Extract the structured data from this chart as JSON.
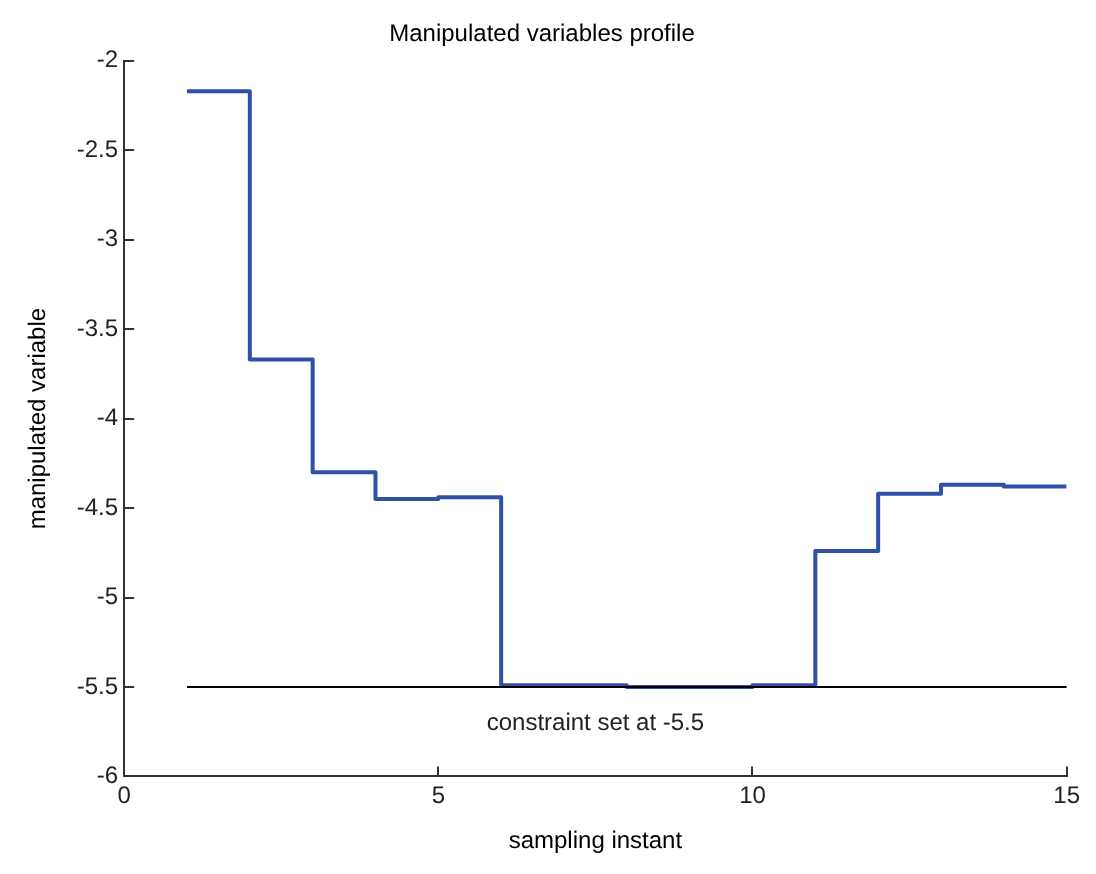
{
  "chart_data": {
    "type": "step",
    "title": "Manipulated variables profile",
    "xlabel": "sampling instant",
    "ylabel": "manipulated variable",
    "x": [
      1,
      2,
      3,
      4,
      5,
      6,
      7,
      8,
      9,
      10,
      11,
      12,
      13,
      14,
      15
    ],
    "series": [
      {
        "color": "#3050a8",
        "values": [
          -2.17,
          -3.67,
          -4.3,
          -4.45,
          -4.44,
          -5.49,
          -5.49,
          -5.5,
          -5.5,
          -5.49,
          -4.74,
          -4.42,
          -4.37,
          -4.38,
          -4.38
        ]
      }
    ],
    "xlim": [
      0,
      15
    ],
    "xticks": [
      0,
      5,
      10,
      15
    ],
    "ylim": [
      -6,
      -2
    ],
    "yticks": [
      -6,
      -5.5,
      -5,
      -4.5,
      -4,
      -3.5,
      -3,
      -2.5,
      -2
    ],
    "ref_lines": [
      {
        "axis": "y",
        "value": -5.5,
        "label": "constraint set at -5.5",
        "color": "#000000"
      }
    ],
    "grid": false,
    "legend": false
  }
}
